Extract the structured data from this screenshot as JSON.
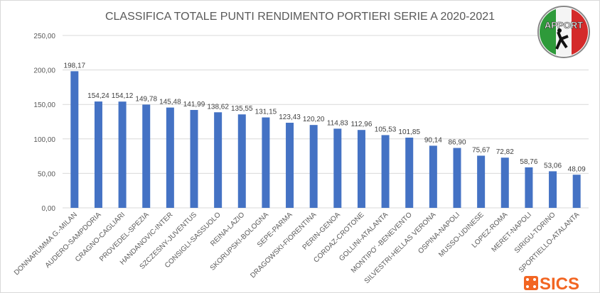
{
  "chart_data": {
    "type": "bar",
    "title": "CLASSIFICA TOTALE PUNTI RENDIMENTO PORTIERI SERIE A 2020-2021",
    "categories": [
      "DONNARUMMA G.-MILAN",
      "AUDERO-SAMPDORIA",
      "CRAGNO-CAGLIARI",
      "PROVEDEL-SPEZIA",
      "HANDANOVIC-INTER",
      "SZCZESNY-JUVENTUS",
      "CONSIGLI-SASSUOLO",
      "REINA-LAZIO",
      "SKORUPSKI-BOLOGNA",
      "SEPE-PARMA",
      "DRAGOWSKI-FIORENTINA",
      "PERIN-GENOA",
      "CORDAZ-CROTONE",
      "GOLLINI-ATALANTA",
      "MONTIPO' -BENEVENTO",
      "SILVESTRI-HELLAS VERONA",
      "OSPINA-NAPOLI",
      "MUSSO-UDINESE",
      "LOPEZ-ROMA",
      "MERET-NAPOLI",
      "SIRIGU-TORINO",
      "SPORTIELLO-ATALANTA"
    ],
    "values": [
      198.17,
      154.24,
      154.12,
      149.78,
      145.48,
      141.99,
      138.62,
      135.55,
      131.15,
      123.43,
      120.2,
      114.83,
      112.96,
      105.53,
      101.85,
      90.14,
      86.9,
      75.67,
      72.82,
      58.76,
      53.06,
      48.09
    ],
    "data_labels": [
      "198,17",
      "154,24",
      "154,12",
      "149,78",
      "145,48",
      "141,99",
      "138,62",
      "135,55",
      "131,15",
      "123,43",
      "120,20",
      "114,83",
      "112,96",
      "105,53",
      "101,85",
      "90,14",
      "86,90",
      "75,67",
      "72,82",
      "58,76",
      "53,06",
      "48,09"
    ],
    "yticks": [
      "0,00",
      "50,00",
      "100,00",
      "150,00",
      "200,00",
      "250,00"
    ],
    "ylim": [
      0,
      250
    ],
    "xlabel": "",
    "ylabel": "",
    "grid": true,
    "legend": "none",
    "bar_color": "#4472c4"
  },
  "logos": {
    "appport": "APPORT",
    "sics": "SICS"
  }
}
